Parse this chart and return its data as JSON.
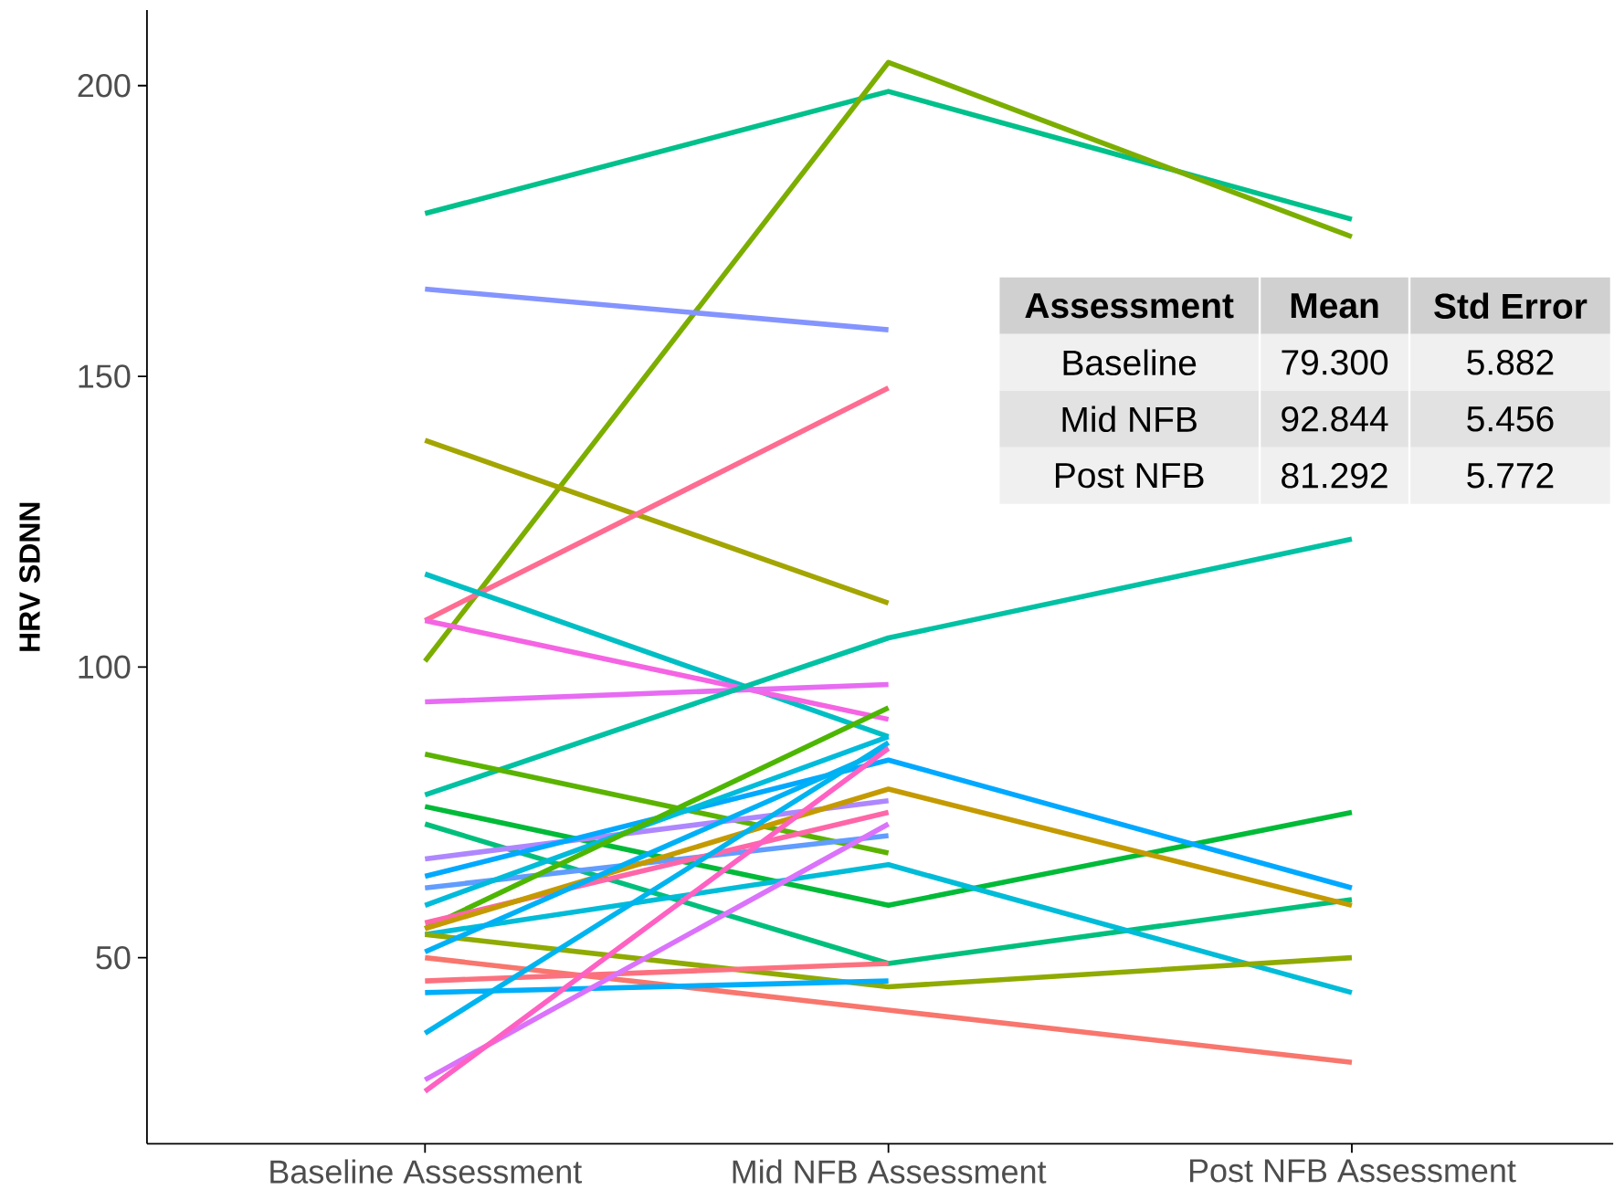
{
  "chart_data": {
    "type": "line",
    "ylabel": "HRV SDNN",
    "categories": [
      "Baseline Assessment",
      "Mid NFB Assessment",
      "Post NFB Assessment"
    ],
    "ylim": [
      18,
      213
    ],
    "yticks": [
      50,
      100,
      150,
      200
    ],
    "grid": false,
    "marker": "none",
    "line_style": "solid",
    "series": [
      {
        "color": "#00C08B",
        "values": [
          178,
          199,
          177
        ]
      },
      {
        "color": "#7CAE00",
        "values": [
          101,
          204,
          174
        ]
      },
      {
        "color": "#8494FF",
        "values": [
          165,
          158,
          null
        ]
      },
      {
        "color": "#A3A500",
        "values": [
          139,
          111,
          null
        ]
      },
      {
        "color": "#FF6C91",
        "values": [
          108,
          148,
          null
        ]
      },
      {
        "color": "#00BFC4",
        "values": [
          116,
          88,
          null
        ]
      },
      {
        "color": "#F564E3",
        "values": [
          108,
          91,
          null
        ]
      },
      {
        "color": "#E76BF3",
        "values": [
          94,
          97,
          null
        ]
      },
      {
        "color": "#00C1A3",
        "values": [
          78,
          105,
          122
        ]
      },
      {
        "color": "#5BB300",
        "values": [
          85,
          68,
          null
        ]
      },
      {
        "color": "#00BA38",
        "values": [
          76,
          59,
          75
        ]
      },
      {
        "color": "#00BF7D",
        "values": [
          73,
          49,
          60
        ]
      },
      {
        "color": "#AE87FF",
        "values": [
          67,
          77,
          null
        ]
      },
      {
        "color": "#00A9FF",
        "values": [
          64,
          84,
          62
        ]
      },
      {
        "color": "#619CFF",
        "values": [
          62,
          71,
          null
        ]
      },
      {
        "color": "#00BBDA",
        "values": [
          59,
          88,
          null
        ]
      },
      {
        "color": "#4DB600",
        "values": [
          55,
          93,
          null
        ]
      },
      {
        "color": "#FF66A8",
        "values": [
          56,
          75,
          null
        ]
      },
      {
        "color": "#C49A00",
        "values": [
          55,
          79,
          59
        ]
      },
      {
        "color": "#00BCD8",
        "values": [
          54,
          66,
          44
        ]
      },
      {
        "color": "#8FAA00",
        "values": [
          54,
          45,
          50
        ]
      },
      {
        "color": "#00B0F6",
        "values": [
          51,
          86,
          null
        ]
      },
      {
        "color": "#F8766D",
        "values": [
          50,
          41,
          32
        ]
      },
      {
        "color": "#FC717F",
        "values": [
          46,
          49,
          null
        ]
      },
      {
        "color": "#00ADFA",
        "values": [
          44,
          46,
          null
        ]
      },
      {
        "color": "#00B4EF",
        "values": [
          37,
          87,
          null
        ]
      },
      {
        "color": "#DB72FB",
        "values": [
          29,
          73,
          null
        ]
      },
      {
        "color": "#FF61C3",
        "values": [
          27,
          86,
          null
        ]
      }
    ],
    "annotations": [
      "Assessment",
      "Mean",
      "Std Error",
      "Baseline",
      "79.300",
      "5.882",
      "Mid NFB",
      "92.844",
      "5.456",
      "Post NFB",
      "81.292",
      "5.772"
    ]
  }
}
